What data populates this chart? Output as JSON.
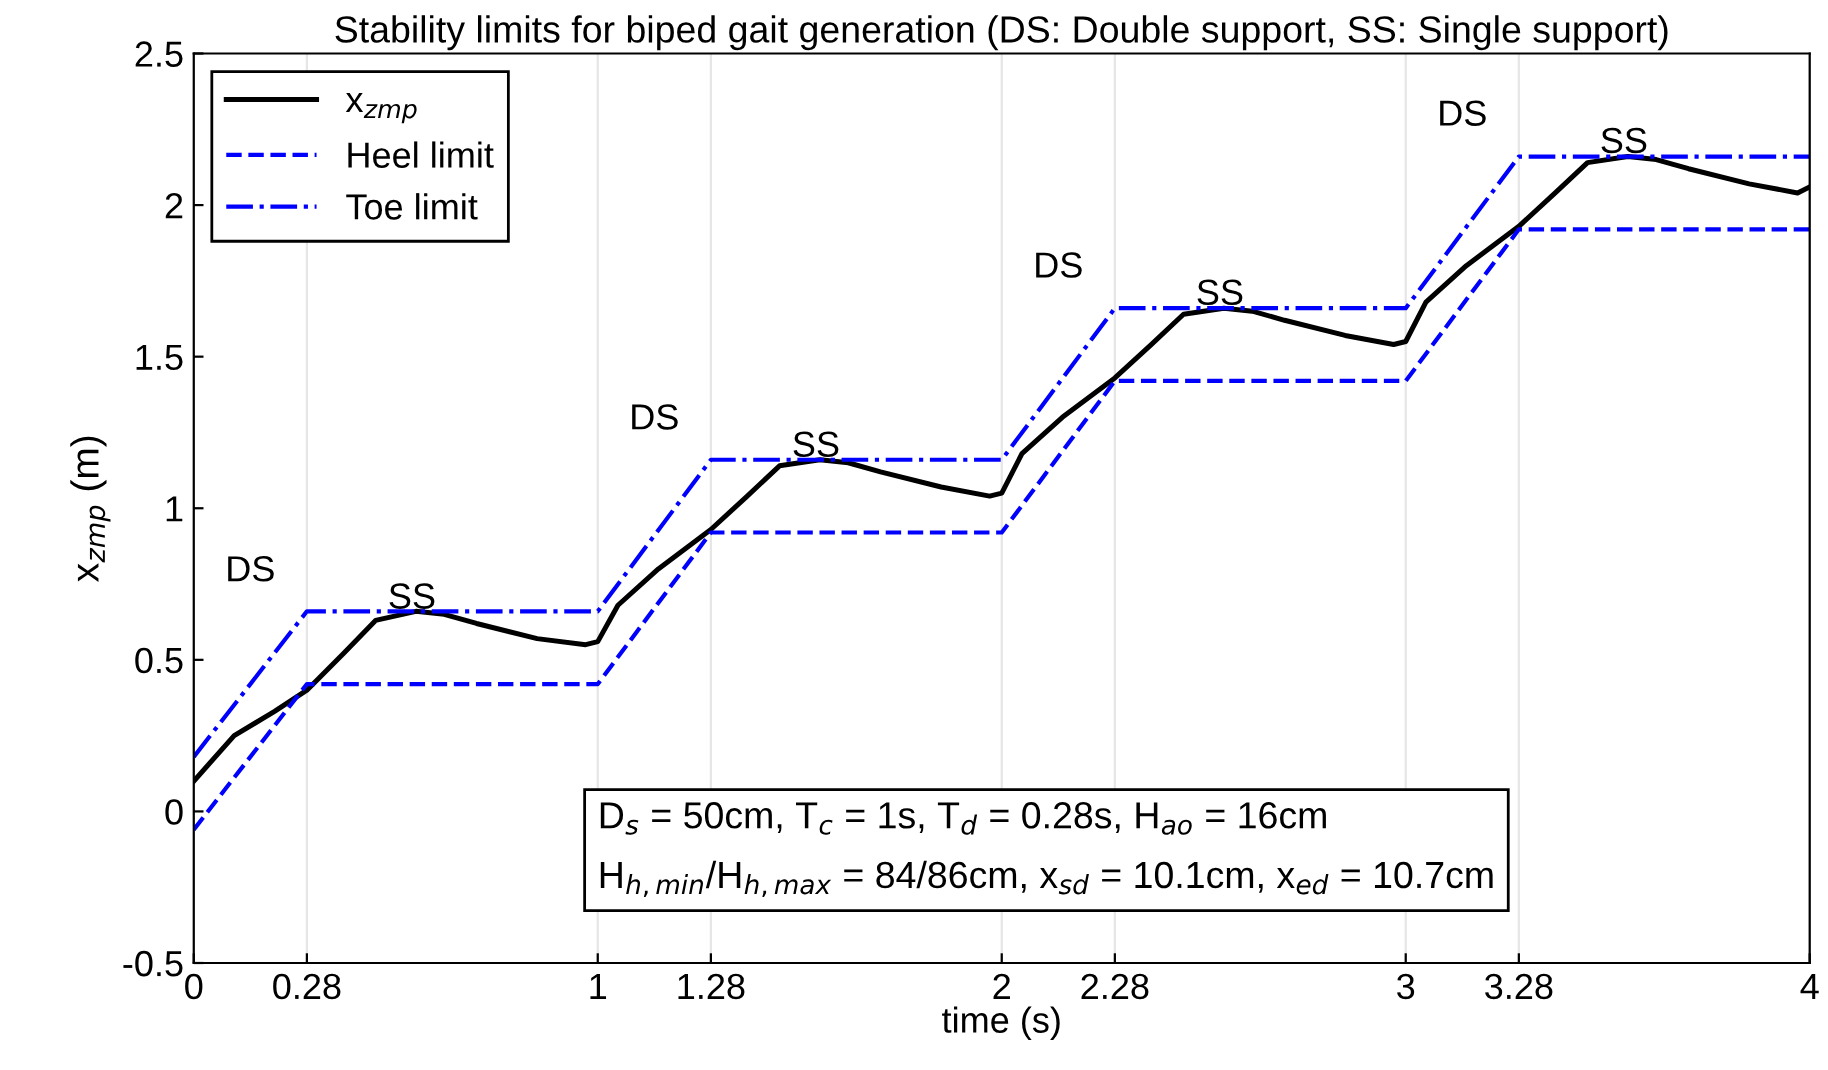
{
  "chart_data": {
    "type": "line",
    "title": "Stability limits for biped gait generation (DS: Double support, SS: Single support)",
    "xlabel": "time (s)",
    "ylabel": "x$_{zmp}$ (m)",
    "xlim": [
      0,
      4
    ],
    "ylim": [
      -0.5,
      2.5
    ],
    "xticks": [
      0,
      0.28,
      1,
      1.28,
      2,
      2.28,
      3,
      3.28,
      4
    ],
    "yticks": [
      {
        "value": -0.5,
        "label": "-0.5"
      },
      0,
      0.5,
      1,
      1.5,
      2,
      2.5
    ],
    "grid": "x",
    "legend": "top left",
    "series": [
      {
        "name": "x$_{zmp}$",
        "color": "#000000",
        "line_style": "solid",
        "x": [
          0,
          0.1,
          0.2,
          0.28,
          0.37,
          0.45,
          0.55,
          0.62,
          0.7,
          0.85,
          0.97,
          1.0,
          1.05,
          1.15,
          1.28,
          1.37,
          1.45,
          1.55,
          1.62,
          1.7,
          1.85,
          1.97,
          2.0,
          2.05,
          2.15,
          2.28,
          2.37,
          2.45,
          2.55,
          2.62,
          2.7,
          2.85,
          2.97,
          3.0,
          3.05,
          3.15,
          3.28,
          3.37,
          3.45,
          3.55,
          3.62,
          3.7,
          3.85,
          3.97,
          4.0
        ],
        "values": [
          0.1,
          0.25,
          0.33,
          0.4,
          0.52,
          0.63,
          0.66,
          0.65,
          0.62,
          0.57,
          0.55,
          0.56,
          0.68,
          0.8,
          0.93,
          1.04,
          1.14,
          1.16,
          1.15,
          1.12,
          1.07,
          1.04,
          1.05,
          1.18,
          1.3,
          1.43,
          1.54,
          1.64,
          1.66,
          1.65,
          1.62,
          1.57,
          1.54,
          1.55,
          1.68,
          1.8,
          1.93,
          2.04,
          2.14,
          2.16,
          2.15,
          2.12,
          2.07,
          2.04,
          2.06
        ]
      },
      {
        "name": "Heel limit",
        "color": "#0000ff",
        "line_style": "dashed",
        "x": [
          0,
          0.28,
          1,
          1.28,
          2,
          2.28,
          3,
          3.28,
          4
        ],
        "values": [
          -0.06,
          0.42,
          0.42,
          0.92,
          0.92,
          1.42,
          1.42,
          1.92,
          1.92
        ]
      },
      {
        "name": "Toe limit",
        "color": "#0000ff",
        "line_style": "dashdot",
        "x": [
          0,
          0.28,
          1,
          1.28,
          2,
          2.28,
          3,
          3.28,
          4
        ],
        "values": [
          0.18,
          0.66,
          0.66,
          1.16,
          1.16,
          1.66,
          1.66,
          2.16,
          2.16
        ]
      }
    ],
    "annotations": [
      "DS",
      "SS",
      "DS",
      "SS",
      "DS",
      "SS",
      "DS",
      "SS",
      "D$_{s}$ = 50cm, T$_{c}$ = 1s, T$_{d}$ = 0.28s, H$_{ao}$ = 16cm\nH$_{h,min}$/H$_{h,max}$ = 84/86cm, x$_{sd}$ = 10.1cm, x$_{ed}$ = 10.7cm"
    ]
  }
}
